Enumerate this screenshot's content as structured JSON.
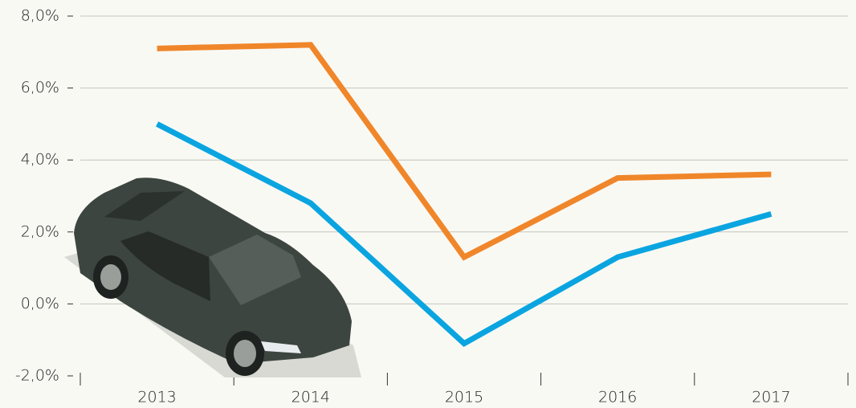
{
  "chart_data": {
    "type": "line",
    "categories": [
      "2013",
      "2014",
      "2015",
      "2016",
      "2017"
    ],
    "series": [
      {
        "color": "#f0862a",
        "values": [
          7.1,
          7.2,
          1.3,
          3.5,
          3.6
        ]
      },
      {
        "color": "#0aa5e0",
        "values": [
          5.0,
          2.8,
          -1.1,
          1.3,
          2.5
        ]
      }
    ],
    "ylim": [
      -2,
      8
    ],
    "yticks": [
      {
        "value": -2,
        "label": "-2,0%"
      },
      {
        "value": 0,
        "label": "0,0%"
      },
      {
        "value": 2,
        "label": "2,0%"
      },
      {
        "value": 4,
        "label": "4,0%"
      },
      {
        "value": 6,
        "label": "6,0%"
      },
      {
        "value": 8,
        "label": "8,0%"
      }
    ],
    "grid": true
  }
}
